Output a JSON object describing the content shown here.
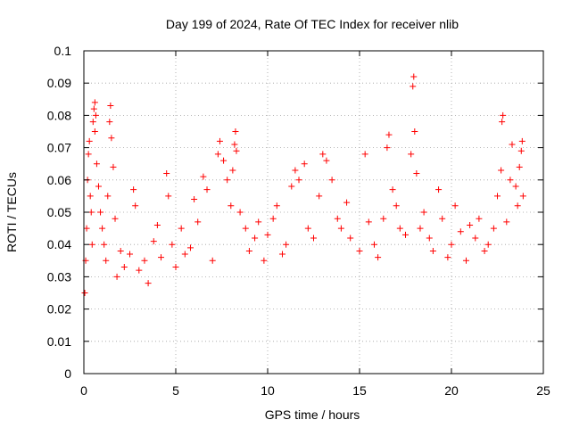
{
  "chart_data": {
    "type": "scatter",
    "title": "Day 199 of 2024, Rate Of TEC Index for receiver nlib",
    "xlabel": "GPS time / hours",
    "ylabel": "ROTI / TECUs",
    "xlim": [
      0,
      25
    ],
    "ylim": [
      0,
      0.1
    ],
    "x_ticks": [
      0,
      5,
      10,
      15,
      20,
      25
    ],
    "x_tick_labels": [
      "0",
      "5",
      "10",
      "15",
      "20",
      "25"
    ],
    "y_ticks": [
      0,
      0.01,
      0.02,
      0.03,
      0.04,
      0.05,
      0.06,
      0.07,
      0.08,
      0.09,
      0.1
    ],
    "y_tick_labels": [
      "0",
      "0.01",
      "0.02",
      "0.03",
      "0.04",
      "0.05",
      "0.06",
      "0.07",
      "0.08",
      "0.09",
      "0.1"
    ],
    "grid": true,
    "marker": "+",
    "series": [
      {
        "name": "ROTI",
        "color": "#ff0000",
        "points": [
          [
            0.05,
            0.025
          ],
          [
            0.1,
            0.035
          ],
          [
            0.15,
            0.045
          ],
          [
            0.2,
            0.06
          ],
          [
            0.25,
            0.068
          ],
          [
            0.3,
            0.072
          ],
          [
            0.35,
            0.055
          ],
          [
            0.4,
            0.05
          ],
          [
            0.45,
            0.04
          ],
          [
            0.5,
            0.078
          ],
          [
            0.55,
            0.082
          ],
          [
            0.6,
            0.084
          ],
          [
            0.6,
            0.075
          ],
          [
            0.65,
            0.08
          ],
          [
            0.7,
            0.065
          ],
          [
            0.8,
            0.058
          ],
          [
            0.9,
            0.05
          ],
          [
            1.0,
            0.045
          ],
          [
            1.1,
            0.04
          ],
          [
            1.2,
            0.035
          ],
          [
            1.3,
            0.055
          ],
          [
            1.4,
            0.078
          ],
          [
            1.45,
            0.083
          ],
          [
            1.5,
            0.073
          ],
          [
            1.6,
            0.064
          ],
          [
            1.7,
            0.048
          ],
          [
            1.8,
            0.03
          ],
          [
            2.0,
            0.038
          ],
          [
            2.2,
            0.033
          ],
          [
            2.5,
            0.037
          ],
          [
            2.7,
            0.057
          ],
          [
            2.8,
            0.052
          ],
          [
            3.0,
            0.032
          ],
          [
            3.3,
            0.035
          ],
          [
            3.5,
            0.028
          ],
          [
            3.8,
            0.041
          ],
          [
            4.0,
            0.046
          ],
          [
            4.2,
            0.036
          ],
          [
            4.5,
            0.062
          ],
          [
            4.6,
            0.055
          ],
          [
            4.8,
            0.04
          ],
          [
            5.0,
            0.033
          ],
          [
            5.3,
            0.045
          ],
          [
            5.5,
            0.037
          ],
          [
            5.8,
            0.039
          ],
          [
            6.0,
            0.054
          ],
          [
            6.2,
            0.047
          ],
          [
            6.5,
            0.061
          ],
          [
            6.7,
            0.057
          ],
          [
            7.0,
            0.035
          ],
          [
            7.3,
            0.068
          ],
          [
            7.4,
            0.072
          ],
          [
            7.6,
            0.066
          ],
          [
            7.8,
            0.06
          ],
          [
            8.0,
            0.052
          ],
          [
            8.1,
            0.063
          ],
          [
            8.2,
            0.071
          ],
          [
            8.25,
            0.075
          ],
          [
            8.3,
            0.069
          ],
          [
            8.5,
            0.05
          ],
          [
            8.8,
            0.045
          ],
          [
            9.0,
            0.038
          ],
          [
            9.3,
            0.042
          ],
          [
            9.5,
            0.047
          ],
          [
            9.8,
            0.035
          ],
          [
            10.0,
            0.043
          ],
          [
            10.3,
            0.048
          ],
          [
            10.5,
            0.052
          ],
          [
            10.8,
            0.037
          ],
          [
            11.0,
            0.04
          ],
          [
            11.3,
            0.058
          ],
          [
            11.5,
            0.063
          ],
          [
            11.7,
            0.06
          ],
          [
            12.0,
            0.065
          ],
          [
            12.2,
            0.045
          ],
          [
            12.5,
            0.042
          ],
          [
            12.8,
            0.055
          ],
          [
            13.0,
            0.068
          ],
          [
            13.2,
            0.066
          ],
          [
            13.5,
            0.06
          ],
          [
            13.8,
            0.048
          ],
          [
            14.0,
            0.045
          ],
          [
            14.3,
            0.053
          ],
          [
            14.5,
            0.042
          ],
          [
            15.0,
            0.038
          ],
          [
            15.3,
            0.068
          ],
          [
            15.5,
            0.047
          ],
          [
            15.8,
            0.04
          ],
          [
            16.0,
            0.036
          ],
          [
            16.3,
            0.048
          ],
          [
            16.5,
            0.07
          ],
          [
            16.6,
            0.074
          ],
          [
            16.8,
            0.057
          ],
          [
            17.0,
            0.052
          ],
          [
            17.2,
            0.045
          ],
          [
            17.5,
            0.043
          ],
          [
            17.8,
            0.068
          ],
          [
            17.9,
            0.089
          ],
          [
            17.95,
            0.092
          ],
          [
            18.0,
            0.075
          ],
          [
            18.1,
            0.062
          ],
          [
            18.3,
            0.045
          ],
          [
            18.5,
            0.05
          ],
          [
            18.8,
            0.042
          ],
          [
            19.0,
            0.038
          ],
          [
            19.3,
            0.057
          ],
          [
            19.5,
            0.048
          ],
          [
            19.8,
            0.036
          ],
          [
            20.0,
            0.04
          ],
          [
            20.2,
            0.052
          ],
          [
            20.5,
            0.044
          ],
          [
            20.8,
            0.035
          ],
          [
            21.0,
            0.046
          ],
          [
            21.3,
            0.042
          ],
          [
            21.5,
            0.048
          ],
          [
            21.8,
            0.038
          ],
          [
            22.0,
            0.04
          ],
          [
            22.3,
            0.045
          ],
          [
            22.5,
            0.055
          ],
          [
            22.7,
            0.063
          ],
          [
            22.75,
            0.078
          ],
          [
            22.8,
            0.08
          ],
          [
            23.0,
            0.047
          ],
          [
            23.2,
            0.06
          ],
          [
            23.3,
            0.071
          ],
          [
            23.5,
            0.058
          ],
          [
            23.6,
            0.052
          ],
          [
            23.7,
            0.064
          ],
          [
            23.8,
            0.069
          ],
          [
            23.85,
            0.072
          ],
          [
            23.9,
            0.055
          ]
        ]
      }
    ]
  }
}
